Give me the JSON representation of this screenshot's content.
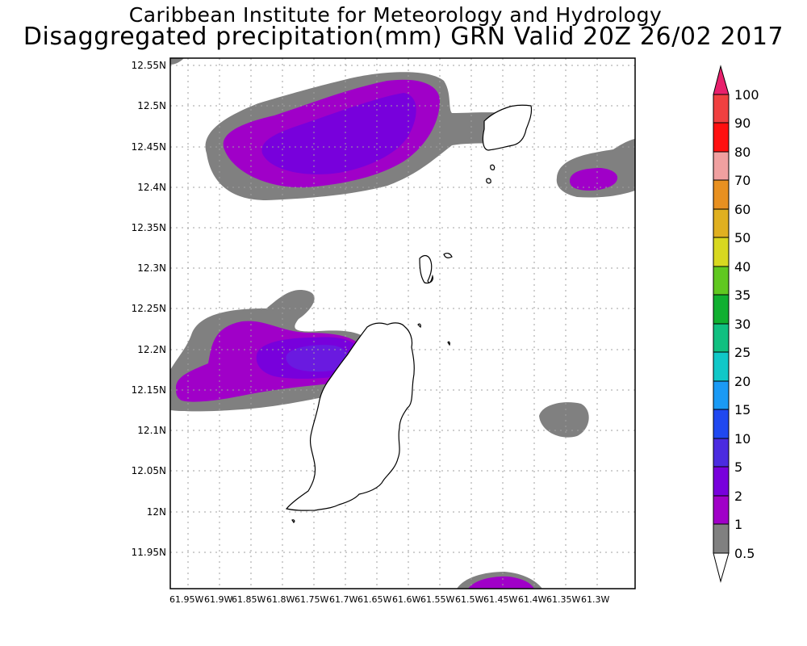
{
  "header": {
    "line1": "Caribbean Institute for Meteorology and Hydrology",
    "line2": "Disaggregated precipitation(mm) GRN Valid 20Z 26/02 2017"
  },
  "axes": {
    "y_ticks": [
      "12.55N",
      "12.5N",
      "12.45N",
      "12.4N",
      "12.35N",
      "12.3N",
      "12.25N",
      "12.2N",
      "12.15N",
      "12.1N",
      "12.05N",
      "12N",
      "11.95N"
    ],
    "x_ticks": [
      "61.95W",
      "61.9W",
      "61.85W",
      "61.8W",
      "61.75W",
      "61.7W",
      "61.65W",
      "61.6W",
      "61.55W",
      "61.5W",
      "61.45W",
      "61.4W",
      "61.35W",
      "61.3W"
    ]
  },
  "colorbar": {
    "labels": [
      "100",
      "90",
      "80",
      "70",
      "60",
      "50",
      "40",
      "35",
      "30",
      "25",
      "20",
      "15",
      "10",
      "5",
      "2",
      "1",
      "0.5"
    ],
    "colors": {
      "c0_5": "#808080",
      "c1": "#a000c8",
      "c2": "#7800dc",
      "c5": "#4b2be0",
      "c10": "#2048f0",
      "c15": "#1a9af5",
      "c20": "#10c8c8",
      "c25": "#10c080",
      "c30": "#10b030",
      "c35": "#60c820",
      "c40": "#d8d820",
      "c50": "#e0b020",
      "c60": "#e89020",
      "c70": "#f0a0a0",
      "c80": "#ff1010",
      "c90": "#f04040",
      "c100": "#e8206c"
    }
  }
}
